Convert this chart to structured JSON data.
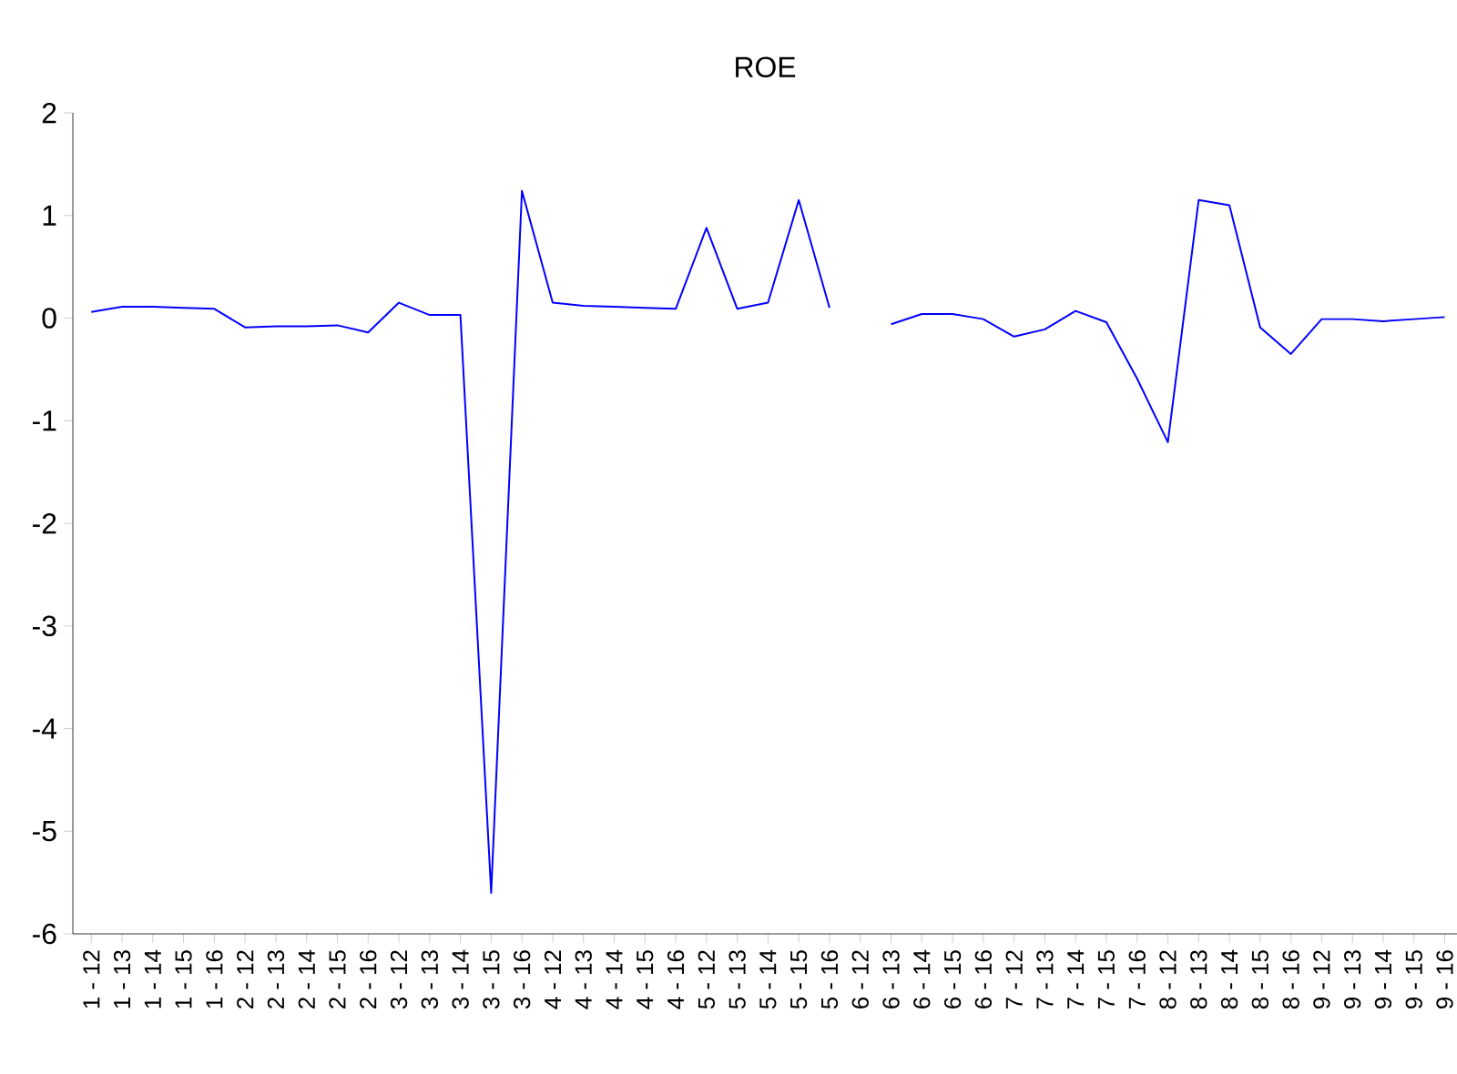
{
  "chart_data": {
    "type": "line",
    "title": "ROE",
    "categories": [
      "1 - 12",
      "1 - 13",
      "1 - 14",
      "1 - 15",
      "1 - 16",
      "2 - 12",
      "2 - 13",
      "2 - 14",
      "2 - 15",
      "2 - 16",
      "3 - 12",
      "3 - 13",
      "3 - 14",
      "3 - 15",
      "3 - 16",
      "4 - 12",
      "4 - 13",
      "4 - 14",
      "4 - 15",
      "4 - 16",
      "5 - 12",
      "5 - 13",
      "5 - 14",
      "5 - 15",
      "5 - 16",
      "6 - 12",
      "6 - 13",
      "6 - 14",
      "6 - 15",
      "6 - 16",
      "7 - 12",
      "7 - 13",
      "7 - 14",
      "7 - 15",
      "7 - 16",
      "8 - 12",
      "8 - 13",
      "8 - 14",
      "8 - 15",
      "8 - 16",
      "9 - 12",
      "9 - 13",
      "9 - 14",
      "9 - 15",
      "9 - 16"
    ],
    "series": [
      {
        "color": "#0000ff",
        "values": [
          0.06,
          0.11,
          0.11,
          0.1,
          0.09,
          -0.09,
          -0.08,
          -0.08,
          -0.07,
          -0.14,
          0.15,
          0.03,
          0.03,
          -5.6,
          1.24,
          0.15,
          0.12,
          0.11,
          0.1,
          0.09,
          0.88,
          0.09,
          0.15,
          1.15,
          0.1,
          null,
          -0.06,
          0.04,
          0.04,
          -0.01,
          -0.18,
          -0.11,
          0.07,
          -0.04,
          -0.59,
          -1.21,
          1.15,
          1.1,
          -0.09,
          -0.35,
          -0.01,
          -0.01,
          -0.03,
          -0.01,
          0.01
        ]
      }
    ],
    "ylim": [
      -6,
      2
    ],
    "yticks": [
      -6,
      -5,
      -4,
      -3,
      -2,
      -1,
      0,
      1,
      2
    ],
    "grid": false,
    "legend": false,
    "marker": "none",
    "line_style": "solid"
  }
}
